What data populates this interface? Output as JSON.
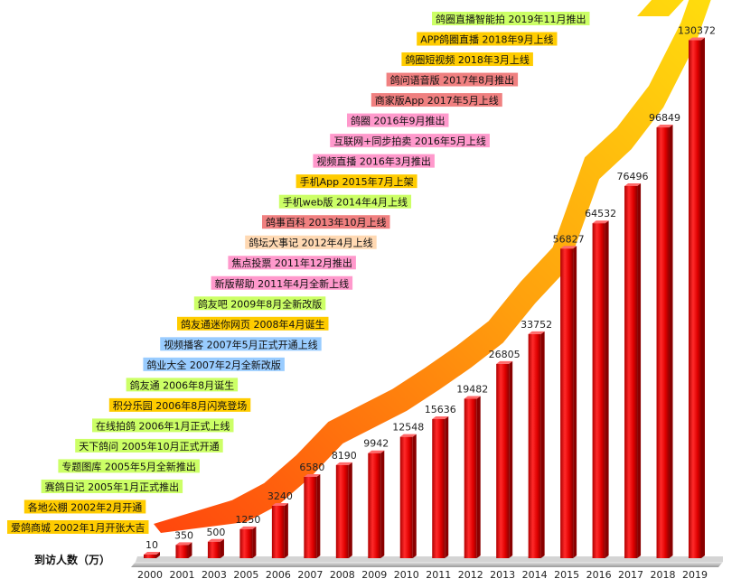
{
  "chart_data": {
    "type": "bar",
    "title": "",
    "xlabel": "",
    "ylabel": "到访人数（万）",
    "ylim": [
      0,
      135000
    ],
    "categories": [
      "2000",
      "2001",
      "2003",
      "2005",
      "2006",
      "2007",
      "2008",
      "2009",
      "2010",
      "2011",
      "2012",
      "2013",
      "2014",
      "2015",
      "2016",
      "2017",
      "2018",
      "2019"
    ],
    "values": [
      10,
      350,
      500,
      1250,
      3240,
      6580,
      8190,
      9942,
      12548,
      15636,
      19482,
      26805,
      33752,
      56827,
      64532,
      76496,
      96849,
      130372
    ],
    "data_labels": [
      "10",
      "350",
      "500",
      "1250",
      "3240",
      "6580",
      "8190",
      "9942",
      "12548",
      "15636",
      "19482",
      "26805",
      "33752",
      "56827",
      "64532",
      "76496",
      "96849",
      "130372"
    ],
    "bar_color": "#e00000",
    "trend_colors": [
      "#ff3c00",
      "#ff9a00",
      "#ffe600"
    ],
    "grid": false,
    "milestones": [
      {
        "text": "鸽圈直播智能拍 2019年11月推出",
        "color": "#ccff66"
      },
      {
        "text": "APP鸽圈直播 2018年9月上线",
        "color": "#ffcc00"
      },
      {
        "text": "鸽圈短视频 2018年3月上线",
        "color": "#ffcc00"
      },
      {
        "text": "鸽问语音版 2017年8月推出",
        "color": "#f08080"
      },
      {
        "text": "商家版App 2017年5月上线",
        "color": "#f08080"
      },
      {
        "text": "鸽圈 2016年9月推出",
        "color": "#ff99cc"
      },
      {
        "text": "互联网+同步拍卖 2016年5月上线",
        "color": "#ff99cc"
      },
      {
        "text": "视频直播 2016年3月推出",
        "color": "#ff99cc"
      },
      {
        "text": "手机App 2015年7月上架",
        "color": "#ffcc00"
      },
      {
        "text": "手机web版 2014年4月上线",
        "color": "#ccff66"
      },
      {
        "text": "鸽事百科 2013年10月上线",
        "color": "#f08080"
      },
      {
        "text": "鸽坛大事记 2012年4月上线",
        "color": "#ffd9b3"
      },
      {
        "text": "焦点投票 2011年12月推出",
        "color": "#ff99cc"
      },
      {
        "text": "新版帮助 2011年4月全新上线",
        "color": "#ff99cc"
      },
      {
        "text": "鸽友吧 2009年8月全新改版",
        "color": "#ccff66"
      },
      {
        "text": "鸽友通迷你网页 2008年4月诞生",
        "color": "#ffcc00"
      },
      {
        "text": "视频播客 2007年5月正式开通上线",
        "color": "#99ccff"
      },
      {
        "text": "鸽业大全 2007年2月全新改版",
        "color": "#99ccff"
      },
      {
        "text": "鸽友通 2006年8月诞生",
        "color": "#ccff66"
      },
      {
        "text": "积分乐园 2006年8月闪亮登场",
        "color": "#ffcc00"
      },
      {
        "text": "在线拍鸽 2006年1月正式上线",
        "color": "#ccff66"
      },
      {
        "text": "天下鸽问 2005年10月正式开通",
        "color": "#ccff66"
      },
      {
        "text": "专题图库 2005年5月全新推出",
        "color": "#ccff66"
      },
      {
        "text": "赛鸽日记 2005年1月正式推出",
        "color": "#ccff66"
      },
      {
        "text": "各地公棚 2002年2月开通",
        "color": "#ffcc00"
      },
      {
        "text": "爱鸽商城 2002年1月开张大吉",
        "color": "#ffcc00"
      }
    ]
  }
}
